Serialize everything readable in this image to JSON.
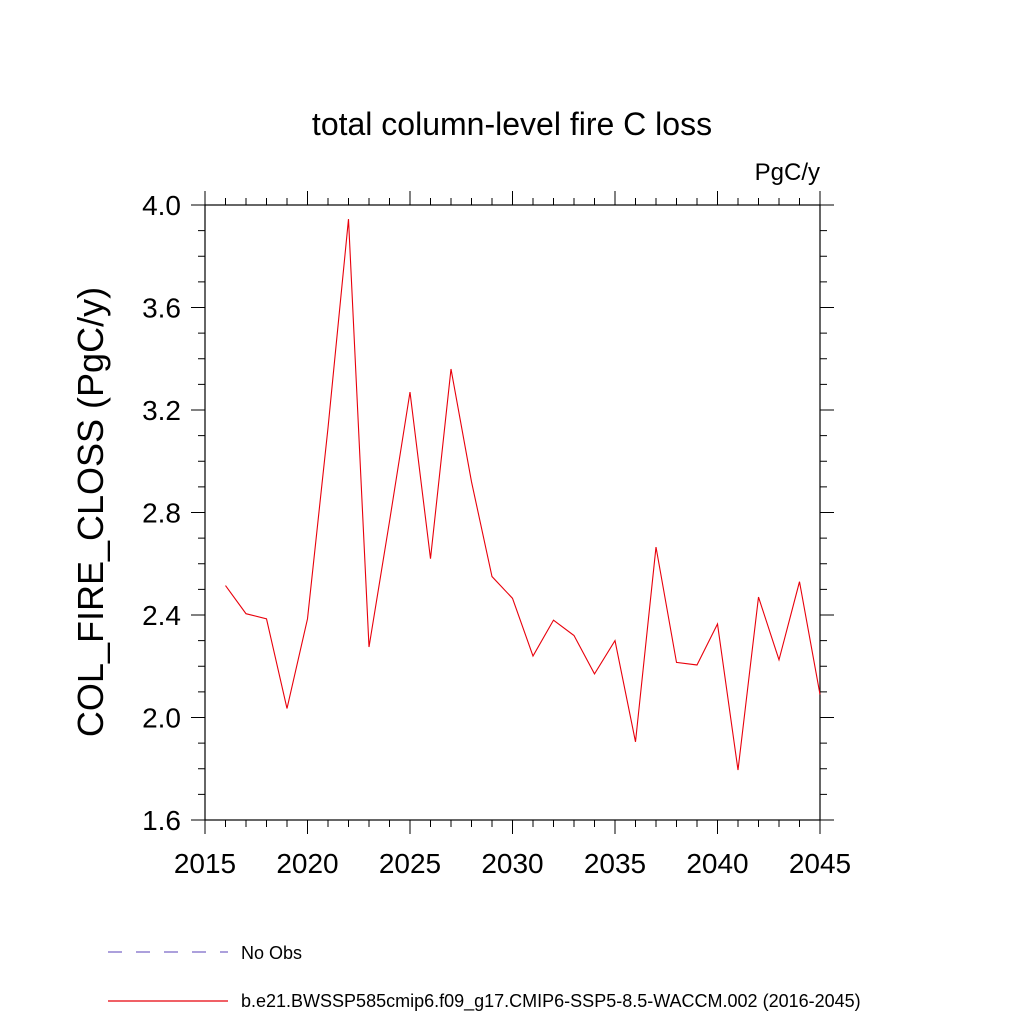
{
  "chart_data": {
    "type": "line",
    "title": "total column-level fire C loss",
    "units": "PgC/y",
    "ylabel": "COL_FIRE_CLOSS  (PgC/y)",
    "xlabel": "",
    "xlim": [
      2015,
      2045
    ],
    "ylim": [
      1.6,
      4.0
    ],
    "x_ticks": [
      2015,
      2020,
      2025,
      2030,
      2035,
      2040,
      2045
    ],
    "y_ticks": [
      1.6,
      2.0,
      2.4,
      2.8,
      3.2,
      3.6,
      4.0
    ],
    "y_tick_labels": [
      "1.6",
      "2.0",
      "2.4",
      "2.8",
      "3.2",
      "3.6",
      "4.0"
    ],
    "grid": false,
    "legend_position": "bottom",
    "legend": [
      {
        "label": "No Obs",
        "color": "#7b68c8",
        "style": "dashed"
      },
      {
        "label": "b.e21.BWSSP585cmip6.f09_g17.CMIP6-SSP5-8.5-WACCM.002 (2016-2045)",
        "color": "#e8000b",
        "style": "solid"
      }
    ],
    "series": [
      {
        "color": "#e8000b",
        "x": [
          2016,
          2017,
          2018,
          2019,
          2020,
          2021,
          2022,
          2023,
          2024,
          2025,
          2026,
          2027,
          2028,
          2029,
          2030,
          2031,
          2032,
          2033,
          2034,
          2035,
          2036,
          2037,
          2038,
          2039,
          2040,
          2041,
          2042,
          2043,
          2044,
          2045
        ],
        "y": [
          2.515,
          2.405,
          2.385,
          2.035,
          2.385,
          3.13,
          3.945,
          2.275,
          2.765,
          3.27,
          2.62,
          3.36,
          2.92,
          2.55,
          2.465,
          2.24,
          2.38,
          2.32,
          2.17,
          2.3,
          1.905,
          2.665,
          2.215,
          2.205,
          2.365,
          1.795,
          2.47,
          2.225,
          2.53,
          2.09
        ]
      }
    ]
  }
}
